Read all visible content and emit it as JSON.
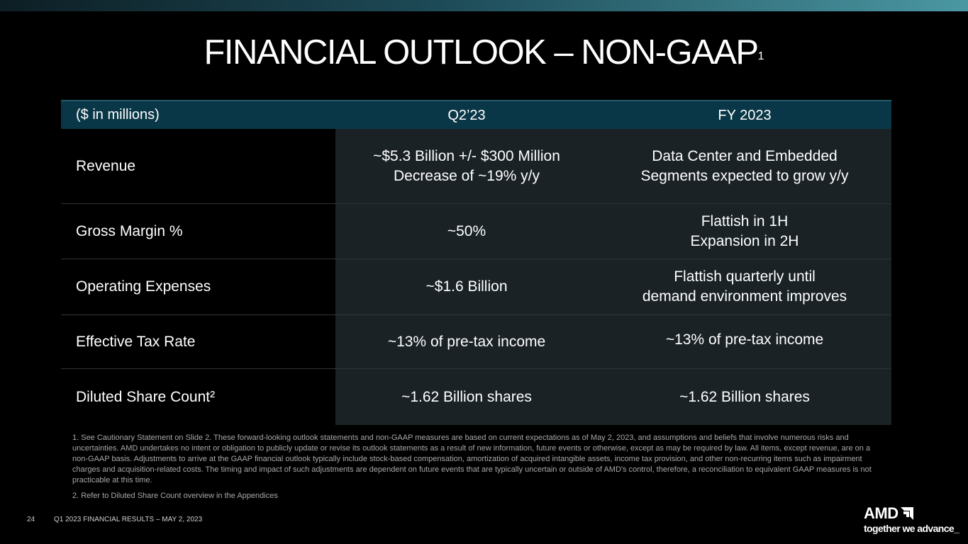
{
  "title": "FINANCIAL OUTLOOK – NON-GAAP",
  "title_superscript": "1",
  "table": {
    "headers": [
      "($ in millions)",
      "Q2’23",
      "FY 2023"
    ],
    "rows": [
      {
        "label": "Revenue",
        "q2": [
          "~$5.3 Billion +/- $300 Million",
          "Decrease of ~19% y/y"
        ],
        "fy": [
          "Data Center and Embedded",
          "Segments expected to grow y/y"
        ]
      },
      {
        "label": "Gross Margin %",
        "q2": [
          "~50%"
        ],
        "fy": [
          "Flattish in 1H",
          "Expansion in 2H"
        ]
      },
      {
        "label": "Operating Expenses",
        "q2": [
          "~$1.6 Billion"
        ],
        "fy": [
          "Flattish quarterly until",
          "demand environment improves"
        ]
      },
      {
        "label": "Effective Tax Rate",
        "q2": [
          "~13% of pre-tax income"
        ],
        "fy": [
          "~13% of pre-tax income"
        ]
      },
      {
        "label": "Diluted Share Count²",
        "q2": [
          "~1.62 Billion shares"
        ],
        "fy": [
          "~1.62 Billion shares"
        ]
      }
    ]
  },
  "footnotes": [
    "1.  See Cautionary Statement on Slide 2. These forward-looking outlook statements and non-GAAP measures are based on current expectations as of May 2, 2023, and assumptions and beliefs that involve numerous risks and uncertainties. AMD undertakes no intent or obligation to publicly update or revise its outlook statements as a result of new information, future events or otherwise, except as may be required by law. All items, except revenue, are on a non-GAAP basis. Adjustments to arrive at the GAAP financial outlook typically include stock-based compensation, amortization of acquired intangible assets, income tax provision, and other non-recurring items such as impairment charges and acquisition-related costs. The timing and impact of such adjustments are dependent on future events that are typically uncertain or outside of AMD's control, therefore, a reconciliation to equivalent GAAP measures is not practicable at this time.",
    "2.  Refer to Diluted Share Count overview in the Appendices"
  ],
  "footer": {
    "page_number": "24",
    "text": "Q1 2023 FINANCIAL RESULTS – MAY 2, 2023"
  },
  "logo": {
    "brand": "AMD",
    "tagline": "together we advance_"
  }
}
